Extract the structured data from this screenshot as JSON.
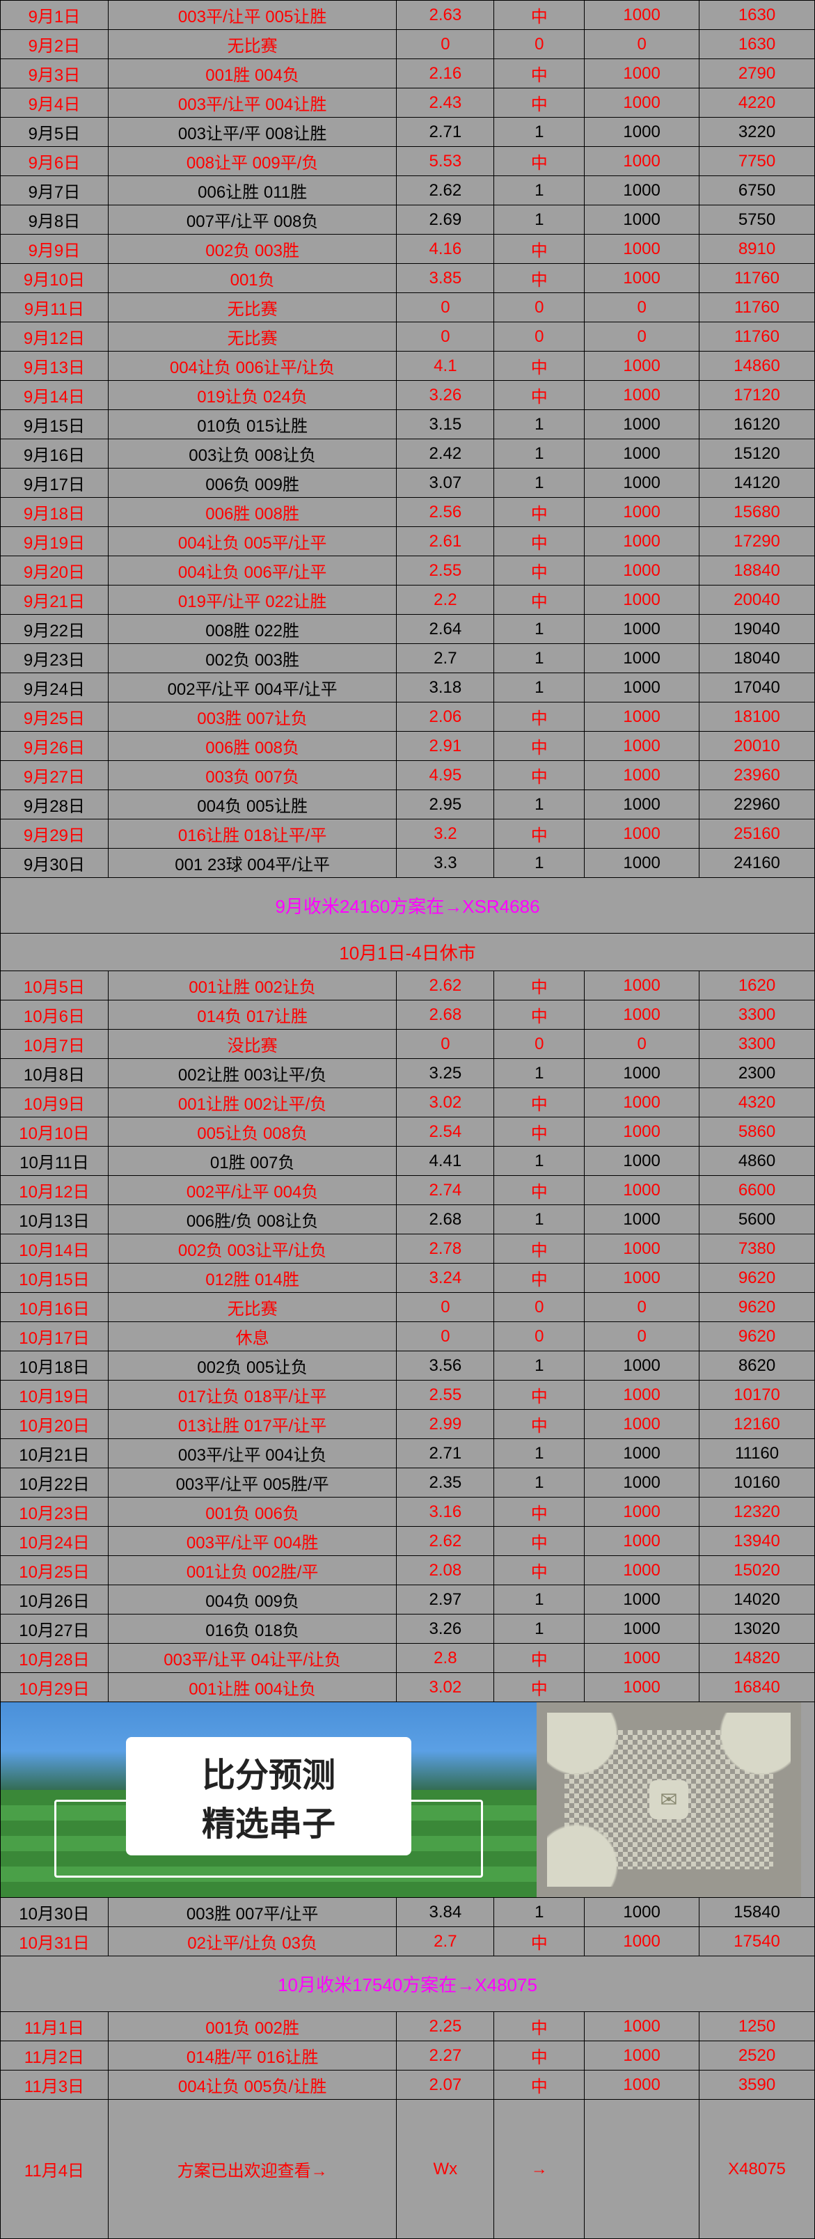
{
  "rows_sep": [
    {
      "date": "9月1日",
      "pick": "003平/让平 005让胜",
      "odds": "2.63",
      "res": "中",
      "bet": "1000",
      "total": "1630",
      "red": true
    },
    {
      "date": "9月2日",
      "pick": "无比赛",
      "odds": "0",
      "res": "0",
      "bet": "0",
      "total": "1630",
      "red": true
    },
    {
      "date": "9月3日",
      "pick": "001胜 004负",
      "odds": "2.16",
      "res": "中",
      "bet": "1000",
      "total": "2790",
      "red": true
    },
    {
      "date": "9月4日",
      "pick": "003平/让平 004让胜",
      "odds": "2.43",
      "res": "中",
      "bet": "1000",
      "total": "4220",
      "red": true
    },
    {
      "date": "9月5日",
      "pick": "003让平/平 008让胜",
      "odds": "2.71",
      "res": "1",
      "bet": "1000",
      "total": "3220",
      "red": false
    },
    {
      "date": "9月6日",
      "pick": "008让平 009平/负",
      "odds": "5.53",
      "res": "中",
      "bet": "1000",
      "total": "7750",
      "red": true
    },
    {
      "date": "9月7日",
      "pick": "006让胜 011胜",
      "odds": "2.62",
      "res": "1",
      "bet": "1000",
      "total": "6750",
      "red": false
    },
    {
      "date": "9月8日",
      "pick": "007平/让平 008负",
      "odds": "2.69",
      "res": "1",
      "bet": "1000",
      "total": "5750",
      "red": false
    },
    {
      "date": "9月9日",
      "pick": "002负 003胜",
      "odds": "4.16",
      "res": "中",
      "bet": "1000",
      "total": "8910",
      "red": true
    },
    {
      "date": "9月10日",
      "pick": "001负",
      "odds": "3.85",
      "res": "中",
      "bet": "1000",
      "total": "11760",
      "red": true
    },
    {
      "date": "9月11日",
      "pick": "无比赛",
      "odds": "0",
      "res": "0",
      "bet": "0",
      "total": "11760",
      "red": true
    },
    {
      "date": "9月12日",
      "pick": "无比赛",
      "odds": "0",
      "res": "0",
      "bet": "0",
      "total": "11760",
      "red": true
    },
    {
      "date": "9月13日",
      "pick": "004让负 006让平/让负",
      "odds": "4.1",
      "res": "中",
      "bet": "1000",
      "total": "14860",
      "red": true
    },
    {
      "date": "9月14日",
      "pick": "019让负 024负",
      "odds": "3.26",
      "res": "中",
      "bet": "1000",
      "total": "17120",
      "red": true
    },
    {
      "date": "9月15日",
      "pick": "010负 015让胜",
      "odds": "3.15",
      "res": "1",
      "bet": "1000",
      "total": "16120",
      "red": false
    },
    {
      "date": "9月16日",
      "pick": "003让负 008让负",
      "odds": "2.42",
      "res": "1",
      "bet": "1000",
      "total": "15120",
      "red": false
    },
    {
      "date": "9月17日",
      "pick": "006负 009胜",
      "odds": "3.07",
      "res": "1",
      "bet": "1000",
      "total": "14120",
      "red": false
    },
    {
      "date": "9月18日",
      "pick": "006胜 008胜",
      "odds": "2.56",
      "res": "中",
      "bet": "1000",
      "total": "15680",
      "red": true
    },
    {
      "date": "9月19日",
      "pick": "004让负 005平/让平",
      "odds": "2.61",
      "res": "中",
      "bet": "1000",
      "total": "17290",
      "red": true
    },
    {
      "date": "9月20日",
      "pick": "004让负 006平/让平",
      "odds": "2.55",
      "res": "中",
      "bet": "1000",
      "total": "18840",
      "red": true
    },
    {
      "date": "9月21日",
      "pick": "019平/让平 022让胜",
      "odds": "2.2",
      "res": "中",
      "bet": "1000",
      "total": "20040",
      "red": true
    },
    {
      "date": "9月22日",
      "pick": "008胜 022胜",
      "odds": "2.64",
      "res": "1",
      "bet": "1000",
      "total": "19040",
      "red": false
    },
    {
      "date": "9月23日",
      "pick": "002负 003胜",
      "odds": "2.7",
      "res": "1",
      "bet": "1000",
      "total": "18040",
      "red": false
    },
    {
      "date": "9月24日",
      "pick": "002平/让平 004平/让平",
      "odds": "3.18",
      "res": "1",
      "bet": "1000",
      "total": "17040",
      "red": false
    },
    {
      "date": "9月25日",
      "pick": "003胜 007让负",
      "odds": "2.06",
      "res": "中",
      "bet": "1000",
      "total": "18100",
      "red": true
    },
    {
      "date": "9月26日",
      "pick": "006胜 008负",
      "odds": "2.91",
      "res": "中",
      "bet": "1000",
      "total": "20010",
      "red": true
    },
    {
      "date": "9月27日",
      "pick": "003负 007负",
      "odds": "4.95",
      "res": "中",
      "bet": "1000",
      "total": "23960",
      "red": true
    },
    {
      "date": "9月28日",
      "pick": "004负 005让胜",
      "odds": "2.95",
      "res": "1",
      "bet": "1000",
      "total": "22960",
      "red": false
    },
    {
      "date": "9月29日",
      "pick": "016让胜 018让平/平",
      "odds": "3.2",
      "res": "中",
      "bet": "1000",
      "total": "25160",
      "red": true
    },
    {
      "date": "9月30日",
      "pick": "001 23球 004平/让平",
      "odds": "3.3",
      "res": "1",
      "bet": "1000",
      "total": "24160",
      "red": false
    }
  ],
  "banner_sep": "9月收米24160方案在→XSR4686",
  "banner_oct_hol": "10月1日-4日休市",
  "rows_oct_a": [
    {
      "date": "10月5日",
      "pick": "001让胜 002让负",
      "odds": "2.62",
      "res": "中",
      "bet": "1000",
      "total": "1620",
      "red": true
    },
    {
      "date": "10月6日",
      "pick": "014负 017让胜",
      "odds": "2.68",
      "res": "中",
      "bet": "1000",
      "total": "3300",
      "red": true
    },
    {
      "date": "10月7日",
      "pick": "没比赛",
      "odds": "0",
      "res": "0",
      "bet": "0",
      "total": "3300",
      "red": true
    },
    {
      "date": "10月8日",
      "pick": "002让胜 003让平/负",
      "odds": "3.25",
      "res": "1",
      "bet": "1000",
      "total": "2300",
      "red": false
    },
    {
      "date": "10月9日",
      "pick": "001让胜 002让平/负",
      "odds": "3.02",
      "res": "中",
      "bet": "1000",
      "total": "4320",
      "red": true
    },
    {
      "date": "10月10日",
      "pick": "005让负 008负",
      "odds": "2.54",
      "res": "中",
      "bet": "1000",
      "total": "5860",
      "red": true
    },
    {
      "date": "10月11日",
      "pick": "01胜 007负",
      "odds": "4.41",
      "res": "1",
      "bet": "1000",
      "total": "4860",
      "red": false
    },
    {
      "date": "10月12日",
      "pick": "002平/让平 004负",
      "odds": "2.74",
      "res": "中",
      "bet": "1000",
      "total": "6600",
      "red": true
    },
    {
      "date": "10月13日",
      "pick": "006胜/负 008让负",
      "odds": "2.68",
      "res": "1",
      "bet": "1000",
      "total": "5600",
      "red": false
    },
    {
      "date": "10月14日",
      "pick": "002负 003让平/让负",
      "odds": "2.78",
      "res": "中",
      "bet": "1000",
      "total": "7380",
      "red": true
    },
    {
      "date": "10月15日",
      "pick": "012胜 014胜",
      "odds": "3.24",
      "res": "中",
      "bet": "1000",
      "total": "9620",
      "red": true
    },
    {
      "date": "10月16日",
      "pick": "无比赛",
      "odds": "0",
      "res": "0",
      "bet": "0",
      "total": "9620",
      "red": true
    },
    {
      "date": "10月17日",
      "pick": "休息",
      "odds": "0",
      "res": "0",
      "bet": "0",
      "total": "9620",
      "red": true
    },
    {
      "date": "10月18日",
      "pick": "002负 005让负",
      "odds": "3.56",
      "res": "1",
      "bet": "1000",
      "total": "8620",
      "red": false
    },
    {
      "date": "10月19日",
      "pick": "017让负 018平/让平",
      "odds": "2.55",
      "res": "中",
      "bet": "1000",
      "total": "10170",
      "red": true
    },
    {
      "date": "10月20日",
      "pick": "013让胜 017平/让平",
      "odds": "2.99",
      "res": "中",
      "bet": "1000",
      "total": "12160",
      "red": true
    },
    {
      "date": "10月21日",
      "pick": "003平/让平 004让负",
      "odds": "2.71",
      "res": "1",
      "bet": "1000",
      "total": "11160",
      "red": false
    },
    {
      "date": "10月22日",
      "pick": "003平/让平 005胜/平",
      "odds": "2.35",
      "res": "1",
      "bet": "1000",
      "total": "10160",
      "red": false
    },
    {
      "date": "10月23日",
      "pick": "001负 006负",
      "odds": "3.16",
      "res": "中",
      "bet": "1000",
      "total": "12320",
      "red": true
    },
    {
      "date": "10月24日",
      "pick": "003平/让平 004胜",
      "odds": "2.62",
      "res": "中",
      "bet": "1000",
      "total": "13940",
      "red": true
    },
    {
      "date": "10月25日",
      "pick": "001让负 002胜/平",
      "odds": "2.08",
      "res": "中",
      "bet": "1000",
      "total": "15020",
      "red": true
    },
    {
      "date": "10月26日",
      "pick": "004负 009负",
      "odds": "2.97",
      "res": "1",
      "bet": "1000",
      "total": "14020",
      "red": false
    },
    {
      "date": "10月27日",
      "pick": "016负 018负",
      "odds": "3.26",
      "res": "1",
      "bet": "1000",
      "total": "13020",
      "red": false
    },
    {
      "date": "10月28日",
      "pick": "003平/让平 04让平/让负",
      "odds": "2.8",
      "res": "中",
      "bet": "1000",
      "total": "14820",
      "red": true
    },
    {
      "date": "10月29日",
      "pick": "001让胜 004让负",
      "odds": "3.02",
      "res": "中",
      "bet": "1000",
      "total": "16840",
      "red": true
    }
  ],
  "banner_img_1": "比分预测",
  "banner_img_2": "精选串子",
  "rows_oct_b": [
    {
      "date": "10月30日",
      "pick": "003胜 007平/让平",
      "odds": "3.84",
      "res": "1",
      "bet": "1000",
      "total": "15840",
      "red": false
    },
    {
      "date": "10月31日",
      "pick": "02让平/让负 03负",
      "odds": "2.7",
      "res": "中",
      "bet": "1000",
      "total": "17540",
      "red": true
    }
  ],
  "banner_oct": "10月收米17540方案在→X48075",
  "rows_nov": [
    {
      "date": "11月1日",
      "pick": "001负 002胜",
      "odds": "2.25",
      "res": "中",
      "bet": "1000",
      "total": "1250",
      "red": true
    },
    {
      "date": "11月2日",
      "pick": "014胜/平 016让胜",
      "odds": "2.27",
      "res": "中",
      "bet": "1000",
      "total": "2520",
      "red": true
    },
    {
      "date": "11月3日",
      "pick": "004让负 005负/让胜",
      "odds": "2.07",
      "res": "中",
      "bet": "1000",
      "total": "3590",
      "red": true
    }
  ],
  "final_row": {
    "date": "11月4日",
    "pick": "方案已出欢迎查看→",
    "odds": "Wx",
    "res": "→",
    "bet": "",
    "total": "X48075",
    "red": true
  }
}
